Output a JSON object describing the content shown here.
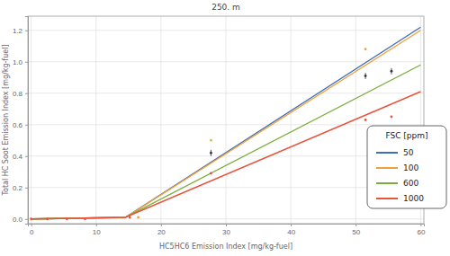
{
  "chart_data": {
    "type": "line",
    "title": "250. m",
    "x_label": "HC5HC6 Emission Index [mg/kg-fuel]",
    "y_label": "Total HC Soot Emission Index [mg/kg-fuel]",
    "legend_title": "FSC [ppm]",
    "legend": "right",
    "grid": true,
    "xlim": [
      -0.5,
      60.5
    ],
    "xticks": [
      0,
      10,
      20,
      30,
      40,
      50,
      60
    ],
    "ylim": [
      -0.03,
      1.29
    ],
    "yticks": [
      {
        "value": 0,
        "label": "0.0"
      },
      0.2,
      0.4,
      0.6,
      0.8,
      {
        "value": 1,
        "label": "1.0"
      },
      1.2
    ],
    "series": [
      {
        "name": "50",
        "color": "#3f6fb5",
        "type": "line",
        "x": [
          0,
          14.5,
          60
        ],
        "values": [
          0,
          0.01,
          1.22
        ]
      },
      {
        "name": "100",
        "color": "#f0a13a",
        "type": "line",
        "x": [
          0,
          14.5,
          60
        ],
        "values": [
          0,
          0.01,
          1.2
        ]
      },
      {
        "name": "600",
        "color": "#7aae3c",
        "type": "line",
        "x": [
          0,
          14.5,
          60
        ],
        "values": [
          0,
          0.01,
          0.98
        ]
      },
      {
        "name": "1000",
        "color": "#e8533a",
        "type": "line",
        "x": [
          0,
          14.5,
          60
        ],
        "values": [
          0,
          0.01,
          0.81
        ]
      }
    ],
    "points": [
      {
        "color": "#f0a13a",
        "type": "scatter",
        "marker": "circle",
        "x": [
          16.5,
          51.5
        ],
        "values": [
          0.01,
          1.08
        ]
      },
      {
        "color": "#c8c832",
        "type": "scatter",
        "marker": "circle",
        "x": [
          27.7
        ],
        "values": [
          0.5
        ]
      },
      {
        "color": "#e8533a",
        "type": "scatter",
        "marker": "circle",
        "x": [
          0,
          2.5,
          5.5,
          8.3,
          15.2,
          27.7,
          51.5,
          55.5
        ],
        "values": [
          0,
          0,
          0,
          0,
          0.01,
          0.29,
          0.63,
          0.65
        ]
      },
      {
        "color": "#333344",
        "type": "scatter",
        "marker": "circle",
        "x": [
          27.7,
          51.5,
          55.5
        ],
        "values": [
          0.42,
          0.91,
          0.94
        ],
        "errors": [
          0.02,
          0.02,
          0.02
        ]
      }
    ]
  }
}
